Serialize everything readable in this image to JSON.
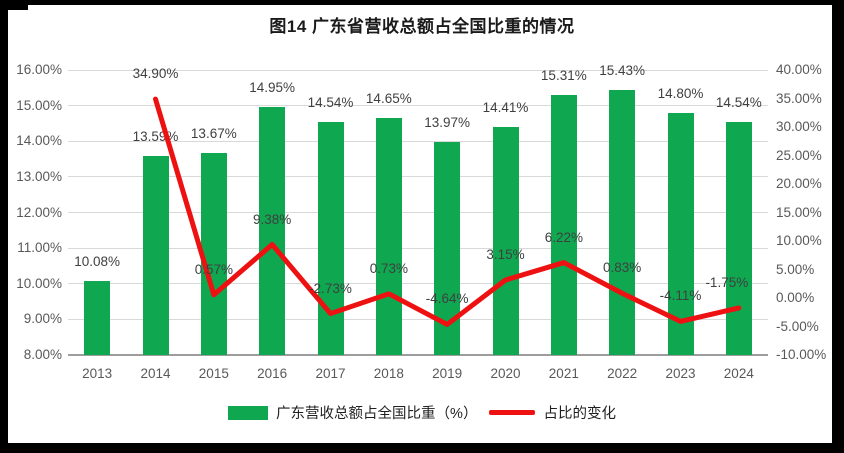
{
  "page": {
    "background": "#ffffff",
    "frame_color": "#000000"
  },
  "chart_data": {
    "type": "bar",
    "subtype": "combo-bar-line",
    "title": "图14  广东省营收总额占全国比重的情况",
    "xlabel": "",
    "ylabel_left": "",
    "ylabel_right": "",
    "grid": true,
    "legend_position": "bottom",
    "categories": [
      "2013",
      "2014",
      "2015",
      "2016",
      "2017",
      "2018",
      "2019",
      "2020",
      "2021",
      "2022",
      "2023",
      "2024"
    ],
    "series": [
      {
        "name": "广东营收总额占全国比重（%）",
        "type": "bar",
        "axis": "left",
        "color": "#0fa851",
        "values": [
          10.08,
          13.59,
          13.67,
          14.95,
          14.54,
          14.65,
          13.97,
          14.41,
          15.31,
          15.43,
          14.8,
          14.54
        ],
        "data_labels": [
          "10.08%",
          "13.59%",
          "13.67%",
          "14.95%",
          "14.54%",
          "14.65%",
          "13.97%",
          "14.41%",
          "15.31%",
          "15.43%",
          "14.80%",
          "14.54%"
        ]
      },
      {
        "name": "占比的变化",
        "type": "line",
        "axis": "right",
        "color": "#ee1111",
        "values": [
          null,
          34.9,
          0.57,
          9.38,
          -2.73,
          0.73,
          -4.64,
          3.15,
          6.22,
          0.83,
          -4.11,
          -1.75
        ],
        "data_labels": [
          null,
          "34.90%",
          "0.57%",
          "9.38%",
          "-2.73%",
          "0.73%",
          "-4.64%",
          "3.15%",
          "6.22%",
          "0.83%",
          "-4.11%",
          "-1.75%"
        ],
        "label_dx": [
          0,
          0,
          0,
          0,
          0,
          0,
          0,
          0,
          0,
          0,
          0,
          -12
        ]
      }
    ],
    "left_axis": {
      "min": 8,
      "max": 16,
      "step": 1,
      "tick_labels": [
        "16.00%",
        "15.00%",
        "14.00%",
        "13.00%",
        "12.00%",
        "11.00%",
        "10.00%",
        "9.00%",
        "8.00%"
      ]
    },
    "right_axis": {
      "min": -10,
      "max": 40,
      "step": 5,
      "tick_labels": [
        "40.00%",
        "35.00%",
        "30.00%",
        "25.00%",
        "20.00%",
        "15.00%",
        "10.00%",
        "5.00%",
        "0.00%",
        "-5.00%",
        "-10.00%"
      ]
    },
    "colors": {
      "grid": "#d9d9d9",
      "axis_line": "#9d9d9d",
      "tick_text": "#595959",
      "label_text": "#3f3f3f"
    }
  },
  "legend": {
    "items": [
      {
        "label": "广东营收总额占全国比重（%）",
        "swatch": "bar",
        "color": "#0fa851"
      },
      {
        "label": "占比的变化",
        "swatch": "line",
        "color": "#ee1111"
      }
    ]
  }
}
